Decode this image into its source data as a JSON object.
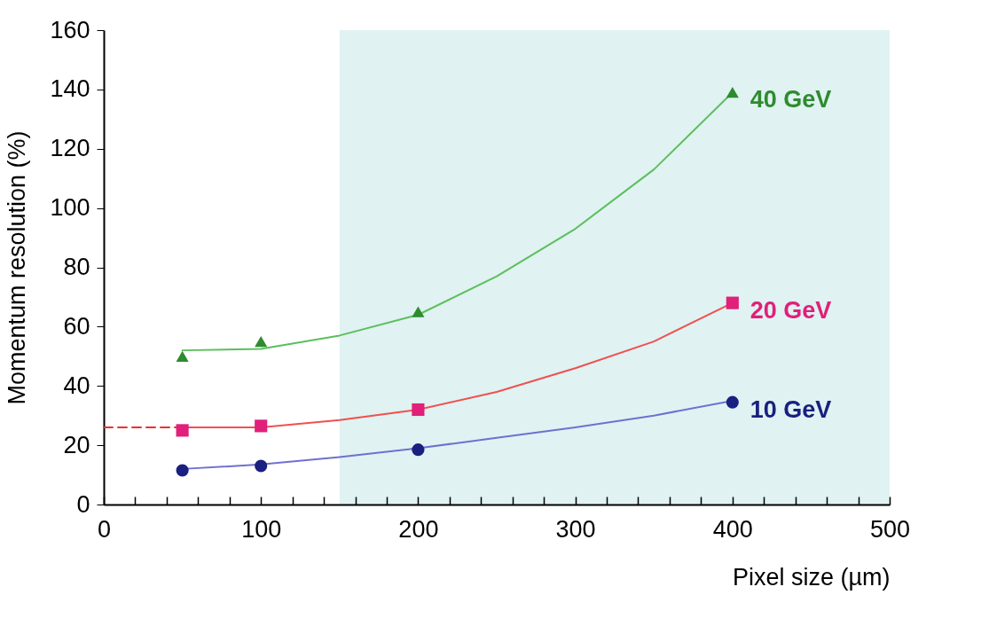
{
  "chart_data": {
    "type": "scatter",
    "xlabel": "Pixel size (µm)",
    "ylabel": "Momentum resolution (%)",
    "xlim": [
      0,
      500
    ],
    "xticks": [
      0,
      {
        "value": 20,
        "label": null
      },
      {
        "value": 40,
        "label": null
      },
      {
        "value": 60,
        "label": null
      },
      {
        "value": 80,
        "label": null
      },
      100,
      {
        "value": 120,
        "label": null
      },
      {
        "value": 140,
        "label": null
      },
      {
        "value": 160,
        "label": null
      },
      {
        "value": 180,
        "label": null
      },
      200,
      {
        "value": 220,
        "label": null
      },
      {
        "value": 240,
        "label": null
      },
      {
        "value": 260,
        "label": null
      },
      {
        "value": 280,
        "label": null
      },
      300,
      {
        "value": 320,
        "label": null
      },
      {
        "value": 340,
        "label": null
      },
      {
        "value": 360,
        "label": null
      },
      {
        "value": 380,
        "label": null
      },
      400,
      {
        "value": 420,
        "label": null
      },
      {
        "value": 440,
        "label": null
      },
      {
        "value": 460,
        "label": null
      },
      {
        "value": 480,
        "label": null
      },
      500
    ],
    "ylim": [
      0,
      160
    ],
    "yticks": [
      0,
      20,
      40,
      60,
      80,
      100,
      120,
      140,
      160
    ],
    "grid": false,
    "legend": false,
    "bands": [
      {
        "axis": "x",
        "from": 150,
        "to": 500,
        "color": "#e0f2f2"
      }
    ],
    "series": [
      {
        "type": "line",
        "color": "#5cbf5c",
        "marker": "none",
        "line_style": "solid",
        "x": [
          50,
          100,
          150,
          200,
          250,
          300,
          350,
          400
        ],
        "values": [
          52,
          52.5,
          57,
          64,
          77,
          93,
          113,
          139
        ]
      },
      {
        "type": "line",
        "color": "#f05050",
        "marker": "none",
        "line_style": "solid",
        "x": [
          50,
          100,
          150,
          200,
          250,
          300,
          350,
          400
        ],
        "values": [
          26,
          26,
          28.5,
          32,
          38,
          46,
          55,
          68
        ]
      },
      {
        "type": "line",
        "color": "#f03030",
        "marker": "none",
        "line_style": "dashed",
        "x": [
          0,
          50
        ],
        "values": [
          26,
          26
        ]
      },
      {
        "type": "line",
        "color": "#7070d0",
        "marker": "none",
        "line_style": "solid",
        "x": [
          50,
          100,
          150,
          200,
          250,
          300,
          350,
          400
        ],
        "values": [
          12,
          13.5,
          16,
          19,
          22.5,
          26,
          30,
          35
        ]
      },
      {
        "name": "40 GeV",
        "color": "#2e8b2e",
        "marker": "triangle",
        "x": [
          50,
          100,
          200,
          400
        ],
        "values": [
          50,
          55,
          65,
          139
        ]
      },
      {
        "name": "20 GeV",
        "color": "#e0207a",
        "marker": "square",
        "x": [
          50,
          100,
          200,
          400
        ],
        "values": [
          25,
          26.5,
          32,
          68
        ]
      },
      {
        "name": "10 GeV",
        "color": "#1a2080",
        "marker": "circle",
        "x": [
          50,
          100,
          200,
          400
        ],
        "values": [
          11.5,
          13,
          18.5,
          34.5
        ]
      }
    ]
  }
}
